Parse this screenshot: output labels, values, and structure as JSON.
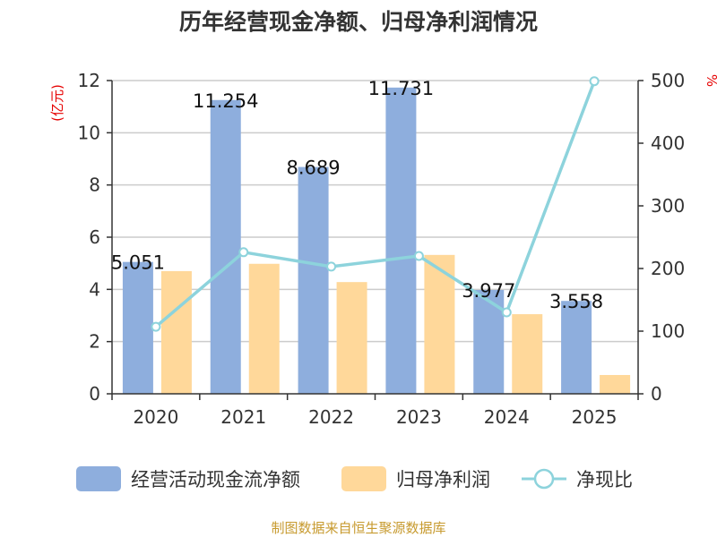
{
  "chart_data": {
    "type": "bar+line",
    "title": "历年经营现金净额、归母净利润情况",
    "categories": [
      "2020",
      "2021",
      "2022",
      "2023",
      "2024",
      "2025"
    ],
    "series": [
      {
        "name": "经营活动现金流净额",
        "type": "bar",
        "axis": "left",
        "color": "#8eaedd",
        "values": [
          5.051,
          11.254,
          8.689,
          11.731,
          3.977,
          3.558
        ]
      },
      {
        "name": "归母净利润",
        "type": "bar",
        "axis": "left",
        "color": "#ffd89a",
        "values": [
          4.7,
          4.98,
          4.28,
          5.32,
          3.05,
          0.72
        ]
      },
      {
        "name": "净现比",
        "type": "line",
        "axis": "right",
        "color": "#8dd3dc",
        "values": [
          107,
          226,
          203,
          220,
          130,
          499
        ]
      }
    ],
    "data_labels": [
      "5.051",
      "11.254",
      "8.689",
      "11.731",
      "3.977",
      "3.558"
    ],
    "ylabel_left": "(亿元)",
    "ylabel_right": "%",
    "ylim_left": [
      0,
      12
    ],
    "yticks_left": [
      0,
      2,
      4,
      6,
      8,
      10,
      12
    ],
    "ylim_right": [
      0,
      500
    ],
    "yticks_right": [
      0,
      100,
      200,
      300,
      400,
      500
    ],
    "grid": true,
    "legend": "bottom",
    "source": "制图数据来自恒生聚源数据库"
  }
}
